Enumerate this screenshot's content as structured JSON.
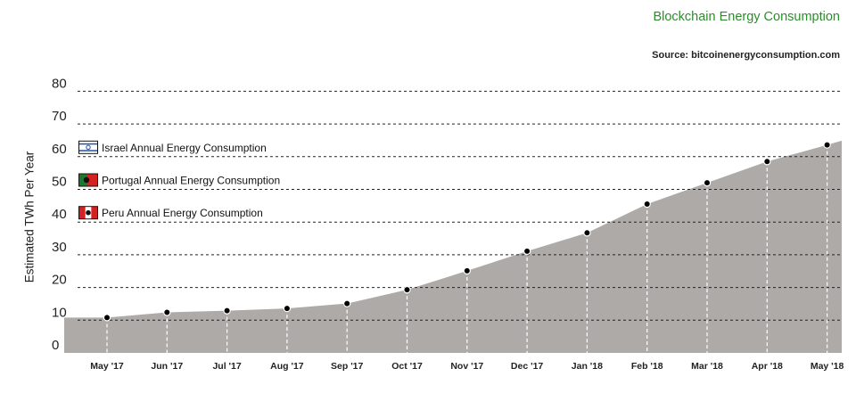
{
  "header": {
    "title": "Blockchain Energy Consumption",
    "source": "Source: bitcoinenergyconsumption.com"
  },
  "chart_data": {
    "type": "area",
    "ylabel": "Estimated TWh Per Year",
    "yticks": [
      0,
      10,
      20,
      30,
      40,
      50,
      60,
      70,
      80
    ],
    "ylim": [
      0,
      80
    ],
    "grid": "dashed horizontal lines",
    "categories": [
      "May '17",
      "Jun '17",
      "Jul '17",
      "Aug '17",
      "Sep '17",
      "Oct '17",
      "Nov '17",
      "Dec '17",
      "Jan '18",
      "Feb '18",
      "Mar '18",
      "Apr '18",
      "May '18"
    ],
    "series": [
      {
        "values": [
          10.8,
          12.4,
          12.9,
          13.6,
          15.1,
          19.3,
          25.1,
          31.1,
          36.7,
          45.5,
          52.0,
          58.5,
          63.6
        ]
      }
    ],
    "reference_lines": [
      {
        "label": "Israel Annual Energy Consumption",
        "value": 60,
        "flag": "israel-flag"
      },
      {
        "label": "Portugal Annual Energy Consumption",
        "value": 50,
        "flag": "portugal-flag"
      },
      {
        "label": "Peru Annual Energy Consumption",
        "value": 40,
        "flag": "peru-flag"
      }
    ],
    "colors": {
      "area": "#aeaaa8",
      "grid": "#222222",
      "marker": "#000000",
      "title": "#2e8b2e"
    }
  }
}
